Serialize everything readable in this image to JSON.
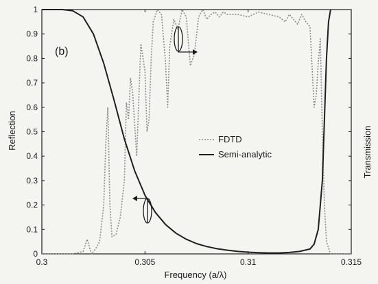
{
  "chart_data": {
    "type": "line",
    "panel_label": "(b)",
    "xlabel": "Frequency (a/λ)",
    "ylabel": "Reflection",
    "ylabel_right": "Transmission",
    "xlim": [
      0.3,
      0.315
    ],
    "ylim": [
      0,
      1
    ],
    "xticks": [
      {
        "value": 0.3,
        "label": "0.3"
      },
      {
        "value": 0.305,
        "label": "0.305"
      },
      {
        "value": 0.31,
        "label": "0.31"
      },
      {
        "value": 0.315,
        "label": "0.315"
      }
    ],
    "yticks": [
      {
        "value": 0,
        "label": "0"
      },
      {
        "value": 0.1,
        "label": "0.1"
      },
      {
        "value": 0.2,
        "label": "0.2"
      },
      {
        "value": 0.3,
        "label": "0.3"
      },
      {
        "value": 0.4,
        "label": "0.4"
      },
      {
        "value": 0.5,
        "label": "0.5"
      },
      {
        "value": 0.6,
        "label": "0.6"
      },
      {
        "value": 0.7,
        "label": "0.7"
      },
      {
        "value": 0.8,
        "label": "0.8"
      },
      {
        "value": 0.9,
        "label": "0.9"
      },
      {
        "value": 1,
        "label": "1"
      }
    ],
    "grid": false,
    "legend_position": "center-right",
    "series": [
      {
        "name": "FDTD",
        "style": "dotted",
        "color": "#8a8a8a",
        "x": [
          0.3,
          0.3015,
          0.302,
          0.3022,
          0.3024,
          0.3026,
          0.3028,
          0.303,
          0.3031,
          0.3032,
          0.3033,
          0.3034,
          0.3036,
          0.3038,
          0.304,
          0.3041,
          0.3042,
          0.3043,
          0.3044,
          0.3046,
          0.3048,
          0.305,
          0.3051,
          0.3052,
          0.3053,
          0.3054,
          0.3056,
          0.3058,
          0.306,
          0.3061,
          0.3062,
          0.3064,
          0.3066,
          0.3068,
          0.307,
          0.3072,
          0.3074,
          0.3076,
          0.3078,
          0.308,
          0.3082,
          0.3084,
          0.3086,
          0.3088,
          0.309,
          0.3095,
          0.31,
          0.3105,
          0.311,
          0.3115,
          0.3118,
          0.312,
          0.3122,
          0.3124,
          0.3126,
          0.3128,
          0.313,
          0.3132,
          0.3133,
          0.3134,
          0.3135,
          0.3136,
          0.3137,
          0.3138,
          0.314,
          0.3145,
          0.315
        ],
        "y": [
          0.0,
          0.0,
          0.01,
          0.06,
          0.0,
          0.02,
          0.05,
          0.2,
          0.45,
          0.6,
          0.2,
          0.07,
          0.08,
          0.15,
          0.3,
          0.62,
          0.55,
          0.72,
          0.66,
          0.4,
          0.86,
          0.75,
          0.5,
          0.55,
          0.8,
          0.95,
          1.0,
          0.98,
          0.78,
          0.6,
          0.85,
          0.96,
          0.92,
          1.0,
          0.97,
          0.77,
          0.82,
          0.97,
          1.0,
          0.96,
          0.98,
          0.99,
          0.97,
          0.99,
          0.98,
          0.98,
          0.97,
          0.99,
          0.98,
          0.97,
          0.95,
          0.98,
          0.96,
          0.94,
          0.98,
          0.95,
          0.93,
          0.6,
          0.65,
          0.78,
          0.88,
          0.5,
          0.2,
          0.05,
          0.0,
          0.0,
          0.0
        ]
      },
      {
        "name": "Semi-analytic",
        "style": "solid",
        "color": "#1e1e1e",
        "x": [
          0.3,
          0.301,
          0.3015,
          0.302,
          0.3025,
          0.303,
          0.3035,
          0.304,
          0.3045,
          0.305,
          0.3055,
          0.306,
          0.3065,
          0.307,
          0.3075,
          0.308,
          0.3085,
          0.309,
          0.3095,
          0.31,
          0.3105,
          0.311,
          0.3115,
          0.312,
          0.3125,
          0.313,
          0.3132,
          0.3134,
          0.3136,
          0.3137,
          0.3138,
          0.3139,
          0.314
        ],
        "y": [
          1.0,
          1.0,
          0.995,
          0.97,
          0.9,
          0.78,
          0.63,
          0.47,
          0.34,
          0.24,
          0.17,
          0.12,
          0.085,
          0.06,
          0.042,
          0.03,
          0.021,
          0.015,
          0.01,
          0.007,
          0.005,
          0.004,
          0.004,
          0.006,
          0.01,
          0.02,
          0.04,
          0.1,
          0.3,
          0.55,
          0.8,
          0.95,
          1.0
        ]
      }
    ]
  }
}
